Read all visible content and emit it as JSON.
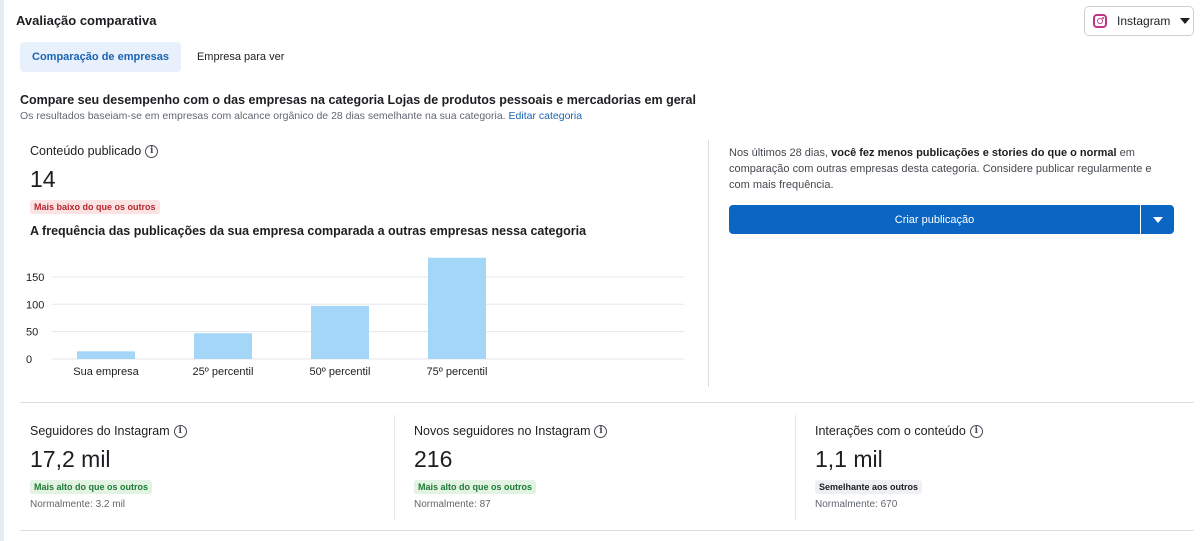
{
  "header": {
    "title": "Avaliação comparativa",
    "platform": "Instagram",
    "platform_icon": "instagram-icon"
  },
  "tabs": [
    {
      "label": "Comparação de empresas",
      "active": true
    },
    {
      "label": "Empresa para ver",
      "active": false
    }
  ],
  "compare": {
    "heading": "Compare seu desempenho com o das empresas na categoria Lojas de produtos pessoais e mercadorias em geral",
    "sub": "Os resultados baseiam-se em empresas com alcance orgânico de 28 dias semelhante na sua categoria.",
    "link": "Editar categoria"
  },
  "content_metric": {
    "label": "Conteúdo publicado",
    "value": "14",
    "badge": "Mais baixo do que os outros"
  },
  "chart_title": "A frequência das publicações da sua empresa comparada a outras empresas nessa categoria",
  "chart_data": {
    "type": "bar",
    "categories": [
      "Sua empresa",
      "25º percentil",
      "50º percentil",
      "75º percentil"
    ],
    "values": [
      14,
      47,
      97,
      185
    ],
    "yticks": [
      0,
      50,
      100,
      150
    ],
    "ylim": [
      0,
      190
    ],
    "grid": true,
    "bar_color": "#a3d6f7"
  },
  "advice": {
    "prefix": "Nos últimos 28 dias, ",
    "bold": "você fez menos publicações e stories do que o normal",
    "suffix": " em comparação com outras empresas desta categoria. Considere publicar regularmente e com mais frequência."
  },
  "cta": {
    "label": "Criar publicação"
  },
  "metrics": [
    {
      "label": "Seguidores do Instagram",
      "value": "17,2 mil",
      "badge": "Mais alto do que os outros",
      "badge_type": "high",
      "normal": "Normalmente: 3.2 mil"
    },
    {
      "label": "Novos seguidores no Instagram",
      "value": "216",
      "badge": "Mais alto do que os outros",
      "badge_type": "high",
      "normal": "Normalmente: 87"
    },
    {
      "label": "Interações com o conteúdo",
      "value": "1,1 mil",
      "badge": "Semelhante aos outros",
      "badge_type": "same",
      "normal": "Normalmente: 670"
    }
  ],
  "info_glyph": "i",
  "colors": {
    "accent": "#0a66c2",
    "link": "#1b64b4",
    "low": "#b8272d",
    "high": "#1e7b35"
  }
}
